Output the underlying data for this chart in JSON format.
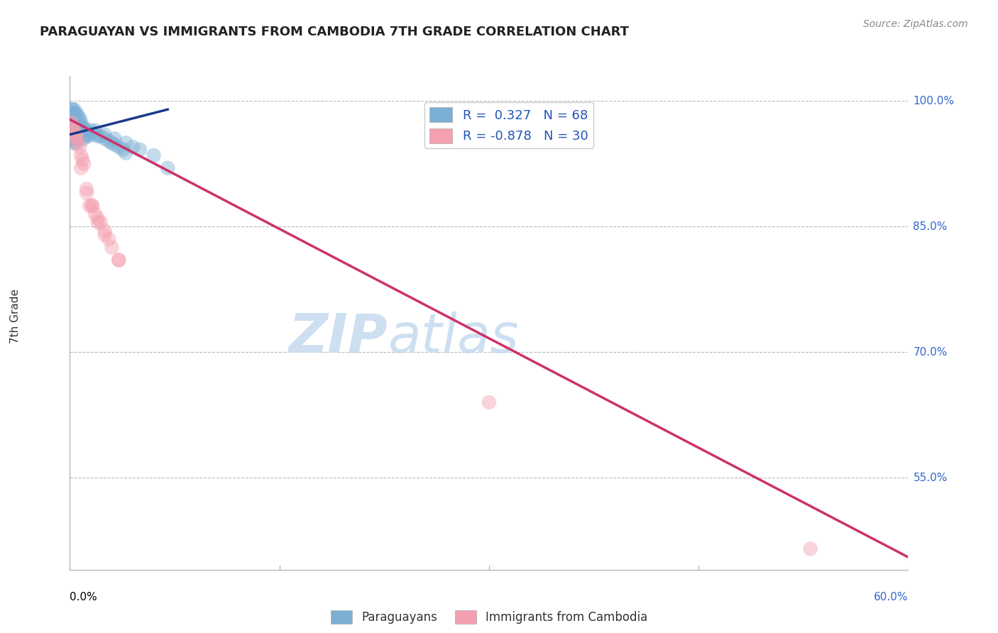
{
  "title": "PARAGUAYAN VS IMMIGRANTS FROM CAMBODIA 7TH GRADE CORRELATION CHART",
  "source": "Source: ZipAtlas.com",
  "ylabel": "7th Grade",
  "ytick_vals": [
    1.0,
    0.85,
    0.7,
    0.55
  ],
  "ytick_labels": [
    "100.0%",
    "85.0%",
    "70.0%",
    "55.0%"
  ],
  "xlim": [
    0.0,
    0.6
  ],
  "ylim": [
    0.44,
    1.03
  ],
  "watermark1": "ZIP",
  "watermark2": "atlas",
  "legend_blue_r": "0.327",
  "legend_blue_n": "68",
  "legend_pink_r": "-0.878",
  "legend_pink_n": "30",
  "blue_color": "#7BAFD4",
  "pink_color": "#F4A0B0",
  "blue_line_color": "#1A3A8A",
  "pink_line_color": "#CC3366",
  "blue_scatter_x": [
    0.001,
    0.001,
    0.001,
    0.001,
    0.001,
    0.001,
    0.001,
    0.001,
    0.002,
    0.002,
    0.002,
    0.002,
    0.002,
    0.002,
    0.002,
    0.002,
    0.003,
    0.003,
    0.003,
    0.003,
    0.003,
    0.003,
    0.003,
    0.004,
    0.004,
    0.004,
    0.004,
    0.004,
    0.005,
    0.005,
    0.005,
    0.005,
    0.006,
    0.006,
    0.006,
    0.007,
    0.007,
    0.007,
    0.008,
    0.008,
    0.009,
    0.009,
    0.01,
    0.01,
    0.011,
    0.011,
    0.012,
    0.013,
    0.015,
    0.016,
    0.018,
    0.02,
    0.022,
    0.025,
    0.028,
    0.03,
    0.032,
    0.035,
    0.038,
    0.04,
    0.018,
    0.025,
    0.032,
    0.04,
    0.045,
    0.05,
    0.06,
    0.07
  ],
  "blue_scatter_y": [
    0.99,
    0.985,
    0.98,
    0.975,
    0.97,
    0.965,
    0.96,
    0.955,
    0.99,
    0.985,
    0.98,
    0.975,
    0.97,
    0.965,
    0.96,
    0.955,
    0.99,
    0.985,
    0.975,
    0.965,
    0.96,
    0.955,
    0.95,
    0.985,
    0.975,
    0.97,
    0.96,
    0.95,
    0.985,
    0.975,
    0.965,
    0.955,
    0.98,
    0.97,
    0.96,
    0.98,
    0.97,
    0.96,
    0.975,
    0.965,
    0.97,
    0.96,
    0.968,
    0.955,
    0.965,
    0.958,
    0.96,
    0.958,
    0.965,
    0.962,
    0.96,
    0.958,
    0.958,
    0.955,
    0.952,
    0.95,
    0.948,
    0.945,
    0.942,
    0.938,
    0.965,
    0.96,
    0.955,
    0.95,
    0.945,
    0.942,
    0.935,
    0.92
  ],
  "pink_scatter_x": [
    0.001,
    0.002,
    0.003,
    0.004,
    0.005,
    0.006,
    0.007,
    0.008,
    0.009,
    0.01,
    0.012,
    0.014,
    0.016,
    0.018,
    0.02,
    0.022,
    0.025,
    0.028,
    0.03,
    0.035,
    0.002,
    0.004,
    0.008,
    0.012,
    0.016,
    0.02,
    0.025,
    0.035,
    0.3,
    0.53
  ],
  "pink_scatter_y": [
    0.975,
    0.97,
    0.965,
    0.96,
    0.958,
    0.95,
    0.945,
    0.935,
    0.93,
    0.925,
    0.895,
    0.875,
    0.875,
    0.865,
    0.86,
    0.855,
    0.845,
    0.835,
    0.825,
    0.81,
    0.965,
    0.955,
    0.92,
    0.89,
    0.875,
    0.855,
    0.84,
    0.81,
    0.64,
    0.465
  ],
  "blue_trend_x": [
    0.0,
    0.07
  ],
  "blue_trend_y": [
    0.96,
    0.99
  ],
  "pink_trend_x": [
    0.0,
    0.6
  ],
  "pink_trend_y": [
    0.978,
    0.455
  ]
}
